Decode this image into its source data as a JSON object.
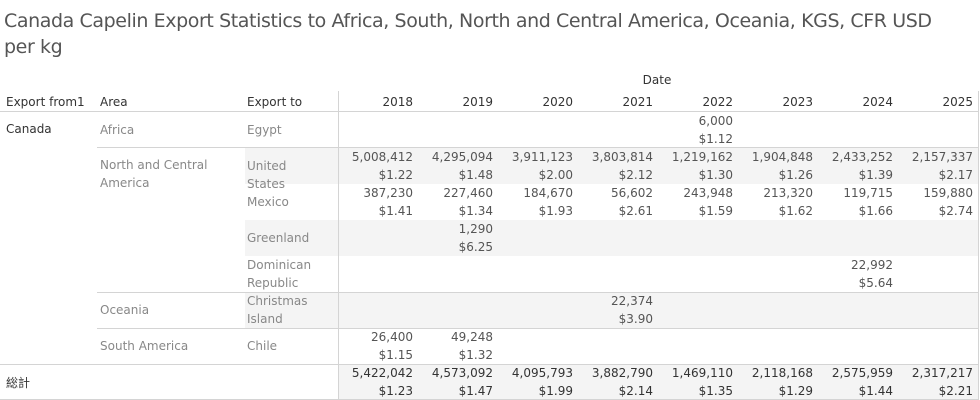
{
  "title": "Canada Capelin Export Statistics to Africa, South, North and Central America, Oceania, KGS, CFR USD per kg",
  "column_group_label": "Date",
  "headers": {
    "export_from": "Export from1",
    "area": "Area",
    "export_to": "Export to"
  },
  "years": [
    "2018",
    "2019",
    "2020",
    "2021",
    "2022",
    "2023",
    "2024",
    "2025"
  ],
  "export_from_value": "Canada",
  "rows": [
    {
      "area": "Africa",
      "export_to": "Egypt",
      "values": [
        null,
        null,
        null,
        null,
        {
          "kg": "6,000",
          "usd": "$1.12"
        },
        null,
        null,
        null
      ]
    },
    {
      "area": "North and Central America",
      "export_to": "United States",
      "values": [
        {
          "kg": "5,008,412",
          "usd": "$1.22"
        },
        {
          "kg": "4,295,094",
          "usd": "$1.48"
        },
        {
          "kg": "3,911,123",
          "usd": "$2.00"
        },
        {
          "kg": "3,803,814",
          "usd": "$2.12"
        },
        {
          "kg": "1,219,162",
          "usd": "$1.30"
        },
        {
          "kg": "1,904,848",
          "usd": "$1.26"
        },
        {
          "kg": "2,433,252",
          "usd": "$1.39"
        },
        {
          "kg": "2,157,337",
          "usd": "$2.17"
        }
      ]
    },
    {
      "area": "",
      "export_to": "Mexico",
      "values": [
        {
          "kg": "387,230",
          "usd": "$1.41"
        },
        {
          "kg": "227,460",
          "usd": "$1.34"
        },
        {
          "kg": "184,670",
          "usd": "$1.93"
        },
        {
          "kg": "56,602",
          "usd": "$2.61"
        },
        {
          "kg": "243,948",
          "usd": "$1.59"
        },
        {
          "kg": "213,320",
          "usd": "$1.62"
        },
        {
          "kg": "119,715",
          "usd": "$1.66"
        },
        {
          "kg": "159,880",
          "usd": "$2.74"
        }
      ]
    },
    {
      "area": "",
      "export_to": "Greenland",
      "values": [
        null,
        {
          "kg": "1,290",
          "usd": "$6.25"
        },
        null,
        null,
        null,
        null,
        null,
        null
      ]
    },
    {
      "area": "",
      "export_to": "Dominican Republic",
      "values": [
        null,
        null,
        null,
        null,
        null,
        null,
        {
          "kg": "22,992",
          "usd": "$5.64"
        },
        null
      ]
    },
    {
      "area": "Oceania",
      "export_to": "Christmas Island",
      "values": [
        null,
        null,
        null,
        {
          "kg": "22,374",
          "usd": "$3.90"
        },
        null,
        null,
        null,
        null
      ]
    },
    {
      "area": "South America",
      "export_to": "Chile",
      "values": [
        {
          "kg": "26,400",
          "usd": "$1.15"
        },
        {
          "kg": "49,248",
          "usd": "$1.32"
        },
        null,
        null,
        null,
        null,
        null,
        null
      ]
    }
  ],
  "grand_total": {
    "label": "総計",
    "values": [
      {
        "kg": "5,422,042",
        "usd": "$1.23"
      },
      {
        "kg": "4,573,092",
        "usd": "$1.47"
      },
      {
        "kg": "4,095,793",
        "usd": "$1.99"
      },
      {
        "kg": "3,882,790",
        "usd": "$2.14"
      },
      {
        "kg": "1,469,110",
        "usd": "$1.35"
      },
      {
        "kg": "2,118,168",
        "usd": "$1.29"
      },
      {
        "kg": "2,575,959",
        "usd": "$1.44"
      },
      {
        "kg": "2,317,217",
        "usd": "$2.21"
      }
    ]
  }
}
